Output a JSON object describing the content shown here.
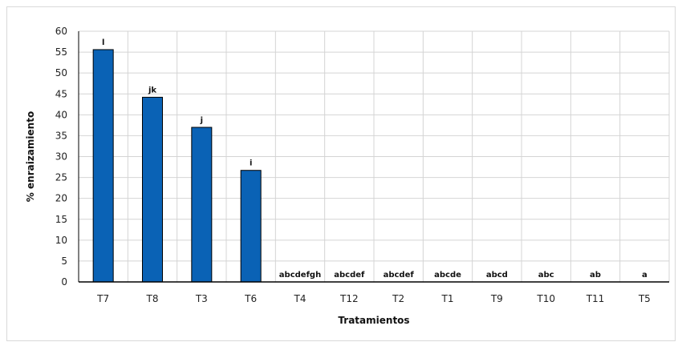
{
  "chart_data": {
    "type": "bar",
    "xlabel": "Tratamientos",
    "ylabel": "% enraizamiento",
    "ylim": [
      0,
      60
    ],
    "yticks": [
      0,
      5,
      10,
      15,
      20,
      25,
      30,
      35,
      40,
      45,
      50,
      55,
      60
    ],
    "grid": true,
    "bar_color": "#0a62b5",
    "categories": [
      "T7",
      "T8",
      "T3",
      "T6",
      "T4",
      "T12",
      "T2",
      "T1",
      "T9",
      "T10",
      "T11",
      "T5"
    ],
    "values": [
      55.6,
      44.2,
      37.0,
      26.7,
      0,
      0,
      0,
      0,
      0,
      0,
      0,
      0
    ],
    "significance_labels": [
      "l",
      "jk",
      "j",
      "i",
      "abcdefgh",
      "abcdef",
      "abcdef",
      "abcde",
      "abcd",
      "abc",
      "ab",
      "a"
    ]
  }
}
